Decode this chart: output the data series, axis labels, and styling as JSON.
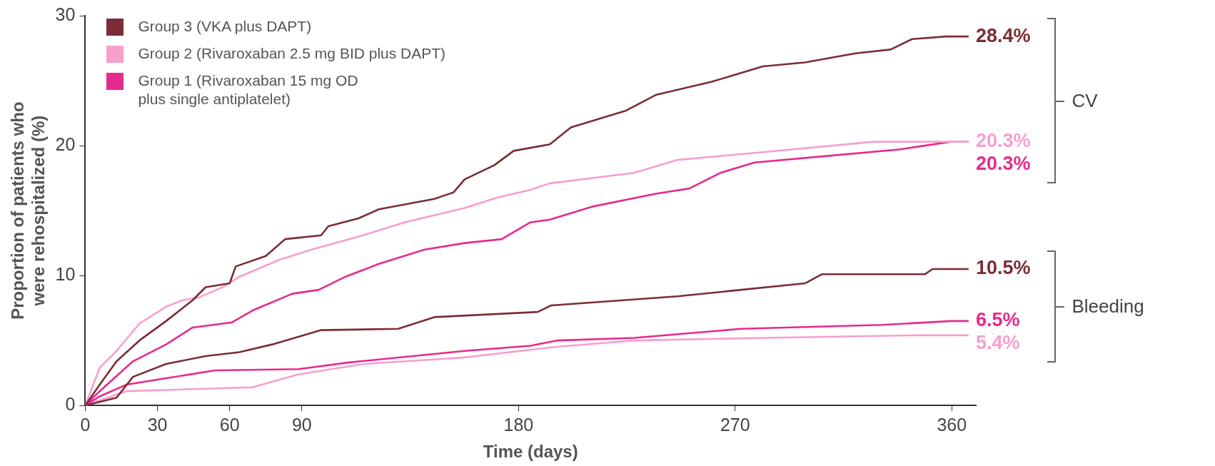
{
  "chart_data": {
    "type": "line",
    "xlabel": "Time (days)",
    "ylabel": "Proportion of patients who were rehospitalized (%)",
    "xlim": [
      0,
      370
    ],
    "xticks": [
      0,
      30,
      60,
      90,
      180,
      270,
      360
    ],
    "ylim": [
      0,
      30
    ],
    "yticks": [
      0,
      10,
      20,
      30
    ],
    "legend": "top left",
    "annotations": [
      "CV",
      "Bleeding"
    ],
    "series": [
      {
        "name": "Group 3 (VKA plus DAPT)",
        "color": "#7b2d35",
        "x": [
          0,
          6,
          13,
          22.5,
          33.6,
          44.6,
          50,
          60,
          62.5,
          75,
          83,
          98,
          101,
          113.5,
          122,
          145,
          153,
          157.6,
          170,
          178,
          193,
          201.8,
          224.7,
          237,
          260,
          281.5,
          299,
          320,
          334.6,
          343.5,
          357.7,
          367
        ],
        "values": [
          0,
          1.6,
          3.4,
          5.0,
          6.5,
          8.1,
          9.1,
          9.4,
          10.7,
          11.5,
          12.8,
          13.1,
          13.8,
          14.4,
          15.1,
          15.9,
          16.4,
          17.4,
          18.5,
          19.6,
          20.1,
          21.4,
          22.7,
          23.9,
          24.9,
          26.1,
          26.4,
          27.1,
          27.4,
          28.2,
          28.4,
          28.4
        ],
        "value_labels": [
          null,
          null,
          null,
          null,
          null,
          null,
          null,
          null,
          null,
          null,
          null,
          null,
          null,
          null,
          null,
          null,
          null,
          null,
          null,
          null,
          null,
          null,
          null,
          null,
          null,
          null,
          null,
          null,
          null,
          null,
          null,
          "28.4%"
        ]
      },
      {
        "name": "Group 2 (Rivaroxaban 2.5 mg BID plus DAPT)",
        "color": "#f79fcc",
        "x": [
          0,
          6,
          13,
          22.5,
          33.6,
          40.5,
          47,
          57,
          64,
          80.5,
          94,
          113.6,
          132.8,
          157.6,
          171,
          185,
          193,
          228,
          246,
          281.5,
          327.5,
          367
        ],
        "values": [
          0,
          2.9,
          4.2,
          6.3,
          7.6,
          8.1,
          8.3,
          9.1,
          9.9,
          11.2,
          12.0,
          13.0,
          14.1,
          15.2,
          16.0,
          16.6,
          17.1,
          17.9,
          18.9,
          19.5,
          20.3,
          20.3
        ],
        "value_labels": [
          null,
          null,
          null,
          null,
          null,
          null,
          null,
          null,
          null,
          null,
          null,
          null,
          null,
          null,
          null,
          null,
          null,
          null,
          null,
          null,
          null,
          "20.3%"
        ]
      },
      {
        "name": "Group 1 (Rivaroxaban 15 mg OD\nplus single antiplatelet)",
        "color": "#e62a8d",
        "x": [
          0,
          6,
          19.8,
          33.6,
          44.6,
          61,
          69.4,
          86,
          97,
          108,
          122,
          141,
          157.6,
          173,
          185,
          193,
          210.5,
          237,
          251,
          263.8,
          278,
          308,
          338,
          359.6,
          367
        ],
        "values": [
          0,
          1.1,
          3.4,
          4.7,
          6.0,
          6.4,
          7.3,
          8.6,
          8.9,
          9.9,
          10.9,
          12.0,
          12.5,
          12.8,
          14.1,
          14.3,
          15.3,
          16.3,
          16.7,
          17.9,
          18.7,
          19.2,
          19.7,
          20.3,
          20.3
        ],
        "value_labels": [
          null,
          null,
          null,
          null,
          null,
          null,
          null,
          null,
          null,
          null,
          null,
          null,
          null,
          null,
          null,
          null,
          null,
          null,
          null,
          null,
          null,
          null,
          null,
          null,
          "20.3%"
        ]
      },
      {
        "color": "#7b2d35",
        "x": [
          0,
          13,
          19.8,
          33.6,
          50,
          64,
          77.7,
          98,
          130,
          145,
          188,
          193.5,
          246,
          299,
          306,
          348.8,
          352,
          367
        ],
        "values": [
          0,
          0.6,
          2.2,
          3.2,
          3.8,
          4.1,
          4.7,
          5.8,
          5.9,
          6.8,
          7.2,
          7.7,
          8.4,
          9.4,
          10.1,
          10.1,
          10.5,
          10.5
        ],
        "value_labels": [
          null,
          null,
          null,
          null,
          null,
          null,
          null,
          null,
          null,
          null,
          null,
          null,
          null,
          null,
          null,
          null,
          null,
          "10.5%"
        ]
      },
      {
        "color": "#e62a8d",
        "x": [
          0,
          6,
          17,
          33.6,
          54,
          88.7,
          109,
          157.6,
          185,
          196,
          228,
          272.5,
          331,
          359.6,
          367
        ],
        "values": [
          0,
          0.7,
          1.6,
          2.1,
          2.7,
          2.8,
          3.3,
          4.2,
          4.6,
          5.0,
          5.2,
          5.9,
          6.2,
          6.5,
          6.5
        ],
        "value_labels": [
          null,
          null,
          null,
          null,
          null,
          null,
          null,
          null,
          null,
          null,
          null,
          null,
          null,
          null,
          "6.5%"
        ]
      },
      {
        "color": "#f79fcc",
        "x": [
          0,
          17,
          69.4,
          88.7,
          116,
          157.6,
          195,
          228,
          281.5,
          343.5,
          367
        ],
        "values": [
          0,
          1.1,
          1.4,
          2.4,
          3.2,
          3.7,
          4.5,
          5.0,
          5.2,
          5.4,
          5.4
        ],
        "value_labels": [
          null,
          null,
          null,
          null,
          null,
          null,
          null,
          null,
          null,
          null,
          "5.4%"
        ]
      }
    ]
  }
}
